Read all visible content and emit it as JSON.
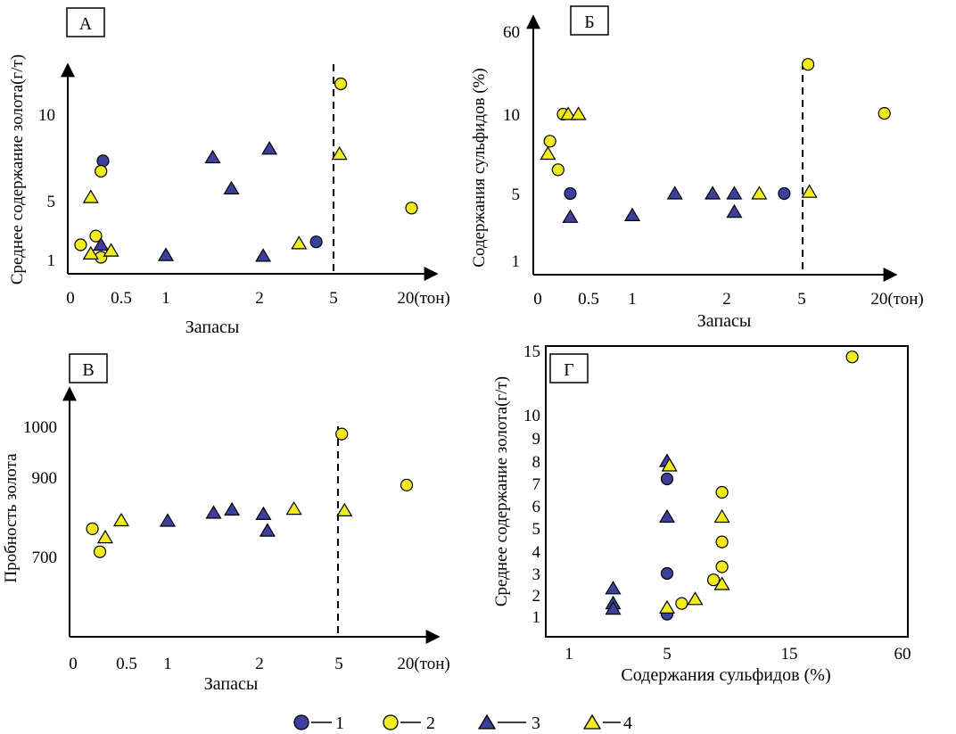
{
  "colors": {
    "blue": "#3d3f9c",
    "yellow": "#f2ec1e",
    "stroke": "#000000"
  },
  "marker_legend": {
    "1": "blue circle",
    "2": "yellow circle",
    "3": "blue triangle",
    "4": "yellow triangle"
  },
  "legend": [
    {
      "marker": "1",
      "label": "1"
    },
    {
      "marker": "2",
      "label": "2"
    },
    {
      "marker": "3",
      "label": "3"
    },
    {
      "marker": "4",
      "label": "4"
    }
  ],
  "chart_data": [
    {
      "panel": "А",
      "type": "scatter",
      "ylabel": "Среднее содержание золота(г/т)",
      "xlabel": "Запасы",
      "x_ticks": [
        "0",
        "0.5",
        "1",
        "2",
        "5",
        "20(тон)"
      ],
      "y_ticks": [
        "1",
        "5",
        "10"
      ],
      "x_scale": "nonlinear (piecewise per tick labels)",
      "cutoff_x": 5,
      "points": [
        {
          "m": "1",
          "x": 0.32,
          "y": 7.3
        },
        {
          "m": "1",
          "x": 4.3,
          "y": 2.2
        },
        {
          "m": "2",
          "x": 0.1,
          "y": 2.0
        },
        {
          "m": "2",
          "x": 0.25,
          "y": 2.6
        },
        {
          "m": "2",
          "x": 0.3,
          "y": 1.15
        },
        {
          "m": "2",
          "x": 0.3,
          "y": 6.7
        },
        {
          "m": "2",
          "x": 6.2,
          "y": 12.0
        },
        {
          "m": "2",
          "x": 18,
          "y": 4.5
        },
        {
          "m": "3",
          "x": 0.3,
          "y": 2.0
        },
        {
          "m": "3",
          "x": 1.0,
          "y": 1.3
        },
        {
          "m": "3",
          "x": 1.5,
          "y": 7.5
        },
        {
          "m": "3",
          "x": 1.7,
          "y": 5.7
        },
        {
          "m": "3",
          "x": 2.15,
          "y": 1.25
        },
        {
          "m": "3",
          "x": 2.4,
          "y": 8.0
        },
        {
          "m": "4",
          "x": 0.2,
          "y": 5.2
        },
        {
          "m": "4",
          "x": 0.2,
          "y": 1.4
        },
        {
          "m": "4",
          "x": 0.4,
          "y": 1.6
        },
        {
          "m": "4",
          "x": 3.6,
          "y": 2.1
        },
        {
          "m": "4",
          "x": 6.0,
          "y": 7.7
        }
      ]
    },
    {
      "panel": "Б",
      "type": "scatter",
      "ylabel": "Содержания сульфидов (%)",
      "xlabel": "Запасы",
      "x_ticks": [
        "0",
        "0.5",
        "1",
        "2",
        "5",
        "20(тон)"
      ],
      "y_ticks": [
        "1",
        "5",
        "10",
        "60"
      ],
      "x_scale": "nonlinear (piecewise per tick labels)",
      "cutoff_x": 5,
      "points": [
        {
          "m": "1",
          "x": 0.32,
          "y": 5.0
        },
        {
          "m": "1",
          "x": 4.3,
          "y": 5.0
        },
        {
          "m": "2",
          "x": 0.12,
          "y": 8.3
        },
        {
          "m": "2",
          "x": 0.2,
          "y": 6.5
        },
        {
          "m": "2",
          "x": 0.25,
          "y": 10.0
        },
        {
          "m": "2",
          "x": 6.0,
          "y": 40
        },
        {
          "m": "2",
          "x": 18,
          "y": 10.5
        },
        {
          "m": "3",
          "x": 0.32,
          "y": 3.6
        },
        {
          "m": "3",
          "x": 1.0,
          "y": 3.7
        },
        {
          "m": "3",
          "x": 1.45,
          "y": 5.0
        },
        {
          "m": "3",
          "x": 1.85,
          "y": 5.0
        },
        {
          "m": "3",
          "x": 2.3,
          "y": 5.0
        },
        {
          "m": "3",
          "x": 2.3,
          "y": 3.9
        },
        {
          "m": "4",
          "x": 0.1,
          "y": 7.5
        },
        {
          "m": "4",
          "x": 0.3,
          "y": 10.0
        },
        {
          "m": "4",
          "x": 0.4,
          "y": 10.0
        },
        {
          "m": "4",
          "x": 3.3,
          "y": 5.0
        },
        {
          "m": "4",
          "x": 6.2,
          "y": 5.1
        }
      ]
    },
    {
      "panel": "В",
      "type": "scatter",
      "ylabel": "Пробность золота",
      "xlabel": "Запасы",
      "x_ticks": [
        "0",
        "0.5",
        "1",
        "2",
        "5",
        "20(тон)"
      ],
      "y_ticks": [
        "700",
        "900",
        "1000"
      ],
      "x_scale": "nonlinear (piecewise per tick labels)",
      "cutoff_x": 5,
      "points": [
        {
          "m": "2",
          "x": 0.18,
          "y": 770
        },
        {
          "m": "2",
          "x": 0.25,
          "y": 712
        },
        {
          "m": "2",
          "x": 5.5,
          "y": 985
        },
        {
          "m": "2",
          "x": 17,
          "y": 880
        },
        {
          "m": "3",
          "x": 1.0,
          "y": 790
        },
        {
          "m": "3",
          "x": 1.5,
          "y": 810
        },
        {
          "m": "3",
          "x": 1.7,
          "y": 818
        },
        {
          "m": "3",
          "x": 2.15,
          "y": 807
        },
        {
          "m": "3",
          "x": 2.3,
          "y": 765
        },
        {
          "m": "4",
          "x": 0.3,
          "y": 748
        },
        {
          "m": "4",
          "x": 0.45,
          "y": 791
        },
        {
          "m": "4",
          "x": 3.3,
          "y": 820
        },
        {
          "m": "4",
          "x": 6.0,
          "y": 816
        }
      ]
    },
    {
      "panel": "Г",
      "type": "scatter",
      "ylabel": "Среднее содержание золота(г/т)",
      "xlabel": "Содержания сульфидов (%)",
      "x_ticks": [
        "1",
        "5",
        "15",
        "60"
      ],
      "y_ticks": [
        "1",
        "2",
        "3",
        "4",
        "5",
        "6",
        "7",
        "8",
        "9",
        "10",
        "15"
      ],
      "points": [
        {
          "m": "1",
          "x": 5.0,
          "y": 7.2
        },
        {
          "m": "1",
          "x": 5.0,
          "y": 3.0
        },
        {
          "m": "1",
          "x": 5.0,
          "y": 1.1
        },
        {
          "m": "2",
          "x": 9.5,
          "y": 6.6
        },
        {
          "m": "2",
          "x": 9.5,
          "y": 4.4
        },
        {
          "m": "2",
          "x": 9.5,
          "y": 3.3
        },
        {
          "m": "2",
          "x": 8.8,
          "y": 2.7
        },
        {
          "m": "2",
          "x": 6.2,
          "y": 1.6
        },
        {
          "m": "2",
          "x": 40,
          "y": 14.5
        },
        {
          "m": "3",
          "x": 2.8,
          "y": 2.3
        },
        {
          "m": "3",
          "x": 2.8,
          "y": 1.6
        },
        {
          "m": "3",
          "x": 2.8,
          "y": 1.35
        },
        {
          "m": "3",
          "x": 5.0,
          "y": 8.0
        },
        {
          "m": "3",
          "x": 5.0,
          "y": 5.5
        },
        {
          "m": "4",
          "x": 5.2,
          "y": 7.8
        },
        {
          "m": "4",
          "x": 5.0,
          "y": 1.4
        },
        {
          "m": "4",
          "x": 7.3,
          "y": 1.8
        },
        {
          "m": "4",
          "x": 9.5,
          "y": 5.5
        },
        {
          "m": "4",
          "x": 9.5,
          "y": 2.5
        }
      ]
    }
  ]
}
